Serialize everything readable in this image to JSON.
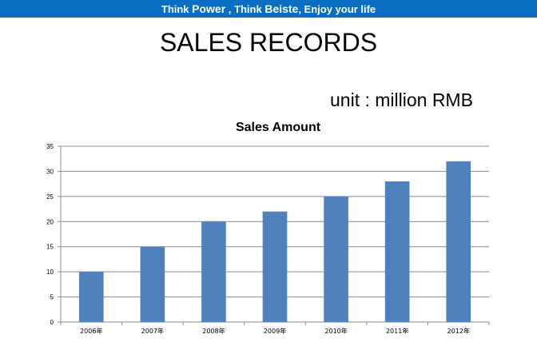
{
  "banner": {
    "part1": "Think ",
    "part2": "Power",
    "part3": " , Think ",
    "part4": "Beiste",
    "part5": ", Enjoy your life",
    "color": "#0a6fc2"
  },
  "page_title": "SALES RECORDS",
  "unit_label": "unit : million  RMB",
  "chart_data": {
    "type": "bar",
    "title": "Sales Amount",
    "xlabel": "",
    "ylabel": "",
    "categories": [
      "2006年",
      "2007年",
      "2008年",
      "2009年",
      "2010年",
      "2011年",
      "2012年"
    ],
    "values": [
      10,
      15,
      20,
      22,
      25,
      28,
      32
    ],
    "ylim": [
      0,
      35
    ],
    "yticks": [
      0,
      5,
      10,
      15,
      20,
      25,
      30,
      35
    ],
    "grid": true,
    "bar_color": "#4f81bd"
  }
}
